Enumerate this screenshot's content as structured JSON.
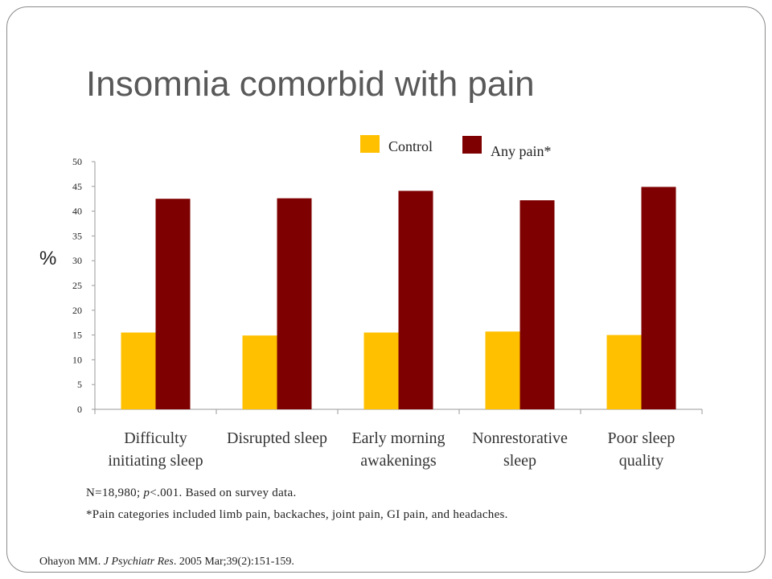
{
  "slide": {
    "title": "Insomnia comorbid with pain",
    "note_line1_prefix": "N=18,980; ",
    "note_line1_p": "p",
    "note_line1_suffix": "<.001.  Based on survey data.",
    "note_line2": "*Pain categories included limb pain, backaches, joint pain, GI pain, and headaches.",
    "citation_author": "Ohayon MM. ",
    "citation_journal": "J Psychiatr Res",
    "citation_rest": ". 2005 Mar;39(2):151-159."
  },
  "chart_data": {
    "type": "bar",
    "title": "",
    "xlabel": "",
    "ylabel": "%",
    "ylim": [
      0,
      50
    ],
    "yticks": [
      0,
      5,
      10,
      15,
      20,
      25,
      30,
      35,
      40,
      45,
      50
    ],
    "grid": false,
    "legend_position": "top",
    "categories": [
      [
        "Difficulty",
        "initiating sleep"
      ],
      [
        "Disrupted sleep"
      ],
      [
        "Early morning",
        "awakenings"
      ],
      [
        "Nonrestorative",
        "sleep"
      ],
      [
        "Poor sleep",
        "quality"
      ]
    ],
    "series": [
      {
        "name": "Control",
        "color": "#FFC000",
        "values": [
          15.5,
          14.9,
          15.5,
          15.7,
          15.0
        ]
      },
      {
        "name": "Any pain*",
        "color": "#7F0000",
        "values": [
          42.5,
          42.6,
          44.1,
          42.2,
          44.9
        ]
      }
    ]
  }
}
